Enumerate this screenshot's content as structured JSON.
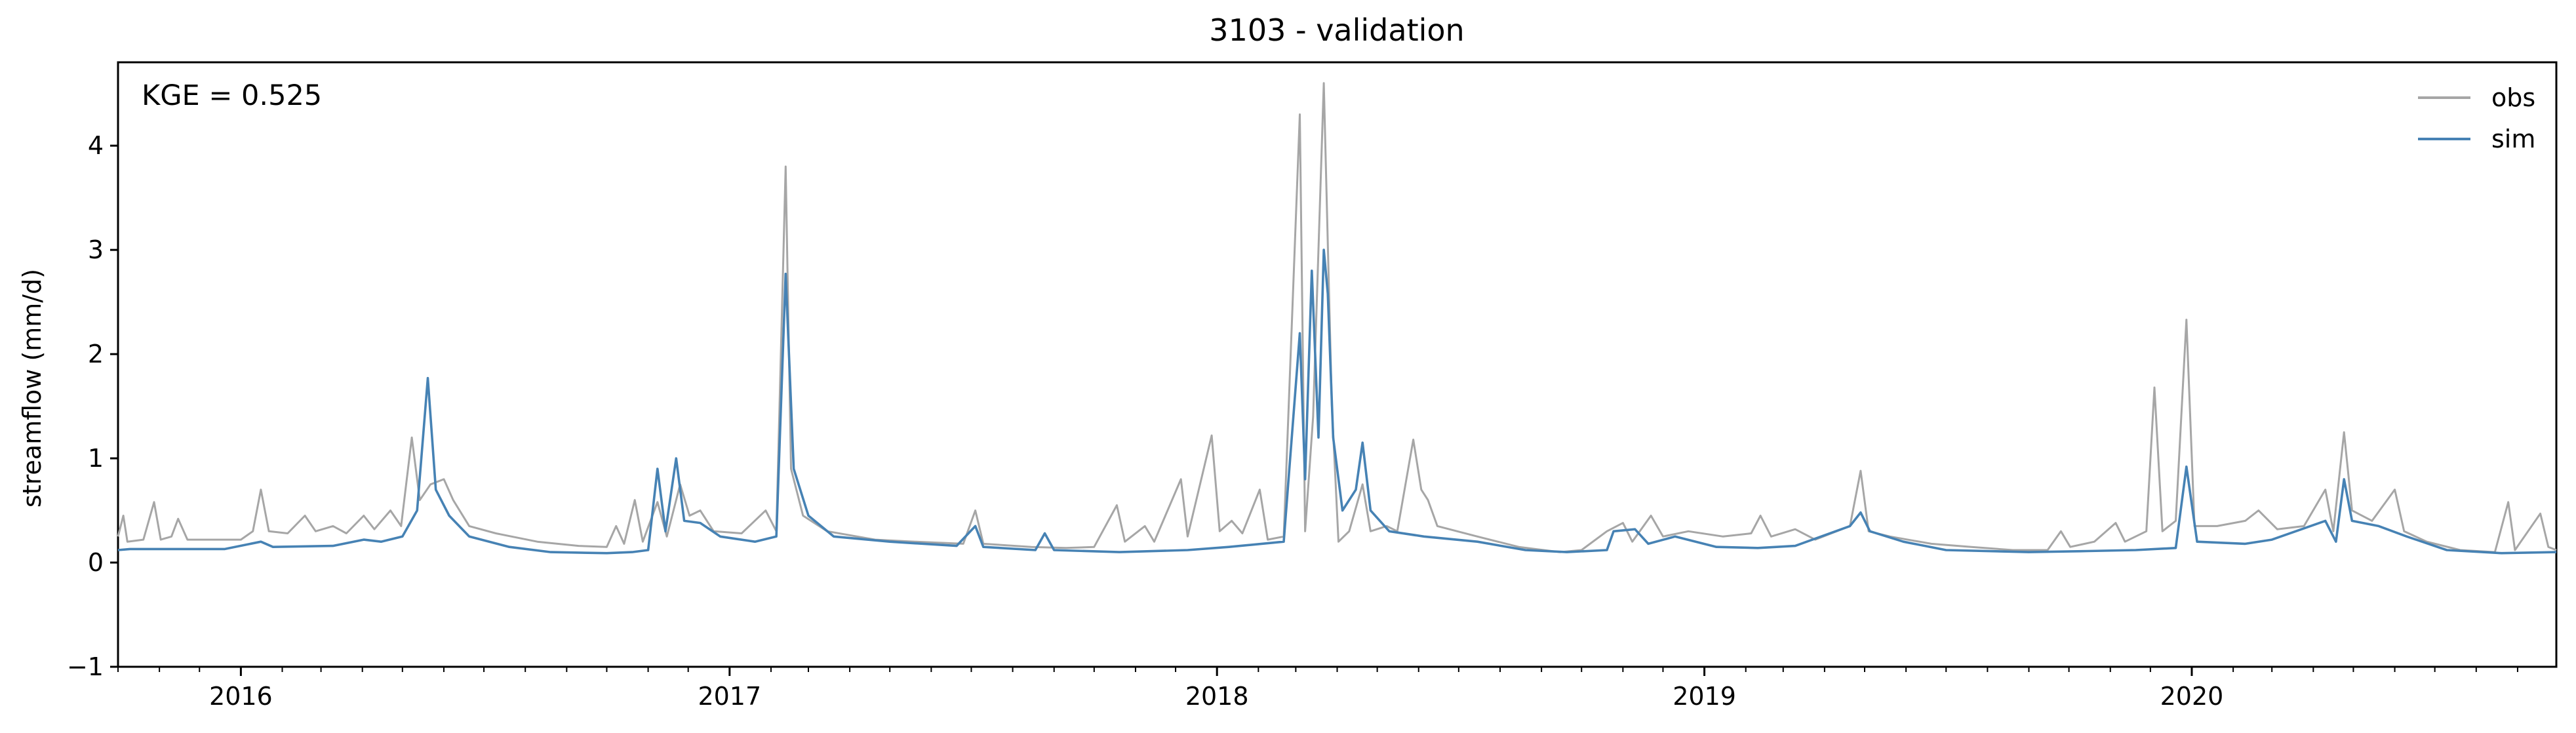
{
  "chart_data": {
    "type": "line",
    "title": "3103 - validation",
    "xlabel": "",
    "ylabel": "streamflow (mm/d)",
    "annotation": "KGE = 0.525",
    "xlim": [
      "2015-10-01",
      "2020-09-30"
    ],
    "ylim": [
      -1,
      4.8
    ],
    "x_ticks": [
      "2016",
      "2017",
      "2018",
      "2019",
      "2020"
    ],
    "x_tick_dates": [
      "2016-01-01",
      "2017-01-01",
      "2018-01-01",
      "2019-01-01",
      "2020-01-01"
    ],
    "y_ticks": [
      "−1",
      "0",
      "1",
      "2",
      "3",
      "4"
    ],
    "y_tick_values": [
      -1,
      0,
      1,
      2,
      3,
      4
    ],
    "grid": false,
    "legend_position": "top-right",
    "series": [
      {
        "name": "obs",
        "color": "#a6a6a6",
        "points": [
          [
            "2015-10-01",
            0.25
          ],
          [
            "2015-10-05",
            0.45
          ],
          [
            "2015-10-08",
            0.2
          ],
          [
            "2015-10-20",
            0.22
          ],
          [
            "2015-10-28",
            0.58
          ],
          [
            "2015-11-02",
            0.22
          ],
          [
            "2015-11-10",
            0.25
          ],
          [
            "2015-11-15",
            0.42
          ],
          [
            "2015-11-22",
            0.22
          ],
          [
            "2015-12-10",
            0.22
          ],
          [
            "2016-01-01",
            0.22
          ],
          [
            "2016-01-10",
            0.3
          ],
          [
            "2016-01-16",
            0.7
          ],
          [
            "2016-01-22",
            0.3
          ],
          [
            "2016-02-05",
            0.28
          ],
          [
            "2016-02-18",
            0.45
          ],
          [
            "2016-02-26",
            0.3
          ],
          [
            "2016-03-10",
            0.35
          ],
          [
            "2016-03-20",
            0.28
          ],
          [
            "2016-04-02",
            0.45
          ],
          [
            "2016-04-10",
            0.32
          ],
          [
            "2016-04-22",
            0.5
          ],
          [
            "2016-04-30",
            0.35
          ],
          [
            "2016-05-08",
            1.2
          ],
          [
            "2016-05-14",
            0.6
          ],
          [
            "2016-05-22",
            0.75
          ],
          [
            "2016-06-01",
            0.8
          ],
          [
            "2016-06-08",
            0.6
          ],
          [
            "2016-06-20",
            0.35
          ],
          [
            "2016-07-10",
            0.28
          ],
          [
            "2016-08-10",
            0.2
          ],
          [
            "2016-09-10",
            0.16
          ],
          [
            "2016-10-01",
            0.15
          ],
          [
            "2016-10-08",
            0.35
          ],
          [
            "2016-10-14",
            0.18
          ],
          [
            "2016-10-22",
            0.6
          ],
          [
            "2016-10-28",
            0.2
          ],
          [
            "2016-11-08",
            0.58
          ],
          [
            "2016-11-15",
            0.25
          ],
          [
            "2016-11-25",
            0.75
          ],
          [
            "2016-12-02",
            0.45
          ],
          [
            "2016-12-10",
            0.5
          ],
          [
            "2016-12-20",
            0.3
          ],
          [
            "2017-01-10",
            0.28
          ],
          [
            "2017-01-28",
            0.5
          ],
          [
            "2017-02-05",
            0.3
          ],
          [
            "2017-02-12",
            3.8
          ],
          [
            "2017-02-16",
            0.9
          ],
          [
            "2017-02-25",
            0.45
          ],
          [
            "2017-03-15",
            0.3
          ],
          [
            "2017-04-20",
            0.22
          ],
          [
            "2017-05-20",
            0.2
          ],
          [
            "2017-06-25",
            0.18
          ],
          [
            "2017-07-04",
            0.5
          ],
          [
            "2017-07-10",
            0.18
          ],
          [
            "2017-08-15",
            0.15
          ],
          [
            "2017-09-10",
            0.14
          ],
          [
            "2017-10-01",
            0.15
          ],
          [
            "2017-10-18",
            0.55
          ],
          [
            "2017-10-24",
            0.2
          ],
          [
            "2017-11-08",
            0.35
          ],
          [
            "2017-11-15",
            0.2
          ],
          [
            "2017-12-05",
            0.8
          ],
          [
            "2017-12-10",
            0.25
          ],
          [
            "2017-12-28",
            1.22
          ],
          [
            "2018-01-03",
            0.3
          ],
          [
            "2018-01-12",
            0.4
          ],
          [
            "2018-01-20",
            0.28
          ],
          [
            "2018-02-02",
            0.7
          ],
          [
            "2018-02-08",
            0.22
          ],
          [
            "2018-02-20",
            0.25
          ],
          [
            "2018-03-04",
            4.3
          ],
          [
            "2018-03-08",
            0.3
          ],
          [
            "2018-03-14",
            1.4
          ],
          [
            "2018-03-22",
            4.6
          ],
          [
            "2018-03-28",
            1.5
          ],
          [
            "2018-04-02",
            0.2
          ],
          [
            "2018-04-10",
            0.3
          ],
          [
            "2018-04-20",
            0.75
          ],
          [
            "2018-04-26",
            0.3
          ],
          [
            "2018-05-08",
            0.35
          ],
          [
            "2018-05-16",
            0.3
          ],
          [
            "2018-05-28",
            1.18
          ],
          [
            "2018-06-03",
            0.7
          ],
          [
            "2018-06-08",
            0.6
          ],
          [
            "2018-06-15",
            0.35
          ],
          [
            "2018-07-15",
            0.25
          ],
          [
            "2018-08-15",
            0.15
          ],
          [
            "2018-09-15",
            0.1
          ],
          [
            "2018-10-01",
            0.12
          ],
          [
            "2018-10-20",
            0.3
          ],
          [
            "2018-11-01",
            0.38
          ],
          [
            "2018-11-08",
            0.2
          ],
          [
            "2018-11-22",
            0.45
          ],
          [
            "2018-12-01",
            0.25
          ],
          [
            "2018-12-20",
            0.3
          ],
          [
            "2019-01-15",
            0.25
          ],
          [
            "2019-02-05",
            0.28
          ],
          [
            "2019-02-12",
            0.45
          ],
          [
            "2019-02-20",
            0.25
          ],
          [
            "2019-03-10",
            0.32
          ],
          [
            "2019-03-25",
            0.22
          ],
          [
            "2019-04-10",
            0.3
          ],
          [
            "2019-04-20",
            0.35
          ],
          [
            "2019-04-28",
            0.88
          ],
          [
            "2019-05-04",
            0.3
          ],
          [
            "2019-05-20",
            0.25
          ],
          [
            "2019-06-20",
            0.18
          ],
          [
            "2019-07-20",
            0.15
          ],
          [
            "2019-08-20",
            0.12
          ],
          [
            "2019-09-15",
            0.12
          ],
          [
            "2019-09-25",
            0.3
          ],
          [
            "2019-10-02",
            0.15
          ],
          [
            "2019-10-20",
            0.2
          ],
          [
            "2019-11-05",
            0.38
          ],
          [
            "2019-11-12",
            0.2
          ],
          [
            "2019-11-28",
            0.3
          ],
          [
            "2019-12-04",
            1.68
          ],
          [
            "2019-12-10",
            0.3
          ],
          [
            "2019-12-20",
            0.4
          ],
          [
            "2019-12-28",
            2.33
          ],
          [
            "2020-01-03",
            0.35
          ],
          [
            "2020-01-20",
            0.35
          ],
          [
            "2020-02-10",
            0.4
          ],
          [
            "2020-02-20",
            0.5
          ],
          [
            "2020-03-05",
            0.32
          ],
          [
            "2020-03-25",
            0.35
          ],
          [
            "2020-04-10",
            0.7
          ],
          [
            "2020-04-16",
            0.3
          ],
          [
            "2020-04-24",
            1.25
          ],
          [
            "2020-04-30",
            0.5
          ],
          [
            "2020-05-15",
            0.4
          ],
          [
            "2020-06-01",
            0.7
          ],
          [
            "2020-06-08",
            0.3
          ],
          [
            "2020-06-25",
            0.2
          ],
          [
            "2020-07-20",
            0.12
          ],
          [
            "2020-08-15",
            0.1
          ],
          [
            "2020-08-25",
            0.58
          ],
          [
            "2020-08-30",
            0.12
          ],
          [
            "2020-09-18",
            0.47
          ],
          [
            "2020-09-24",
            0.15
          ],
          [
            "2020-09-30",
            0.12
          ]
        ]
      },
      {
        "name": "sim",
        "color": "#4682b4",
        "points": [
          [
            "2015-10-01",
            0.12
          ],
          [
            "2015-10-10",
            0.13
          ],
          [
            "2015-11-10",
            0.13
          ],
          [
            "2015-12-20",
            0.13
          ],
          [
            "2016-01-16",
            0.2
          ],
          [
            "2016-01-25",
            0.15
          ],
          [
            "2016-03-10",
            0.16
          ],
          [
            "2016-04-02",
            0.22
          ],
          [
            "2016-04-15",
            0.2
          ],
          [
            "2016-05-01",
            0.25
          ],
          [
            "2016-05-12",
            0.5
          ],
          [
            "2016-05-20",
            1.77
          ],
          [
            "2016-05-26",
            0.7
          ],
          [
            "2016-06-05",
            0.45
          ],
          [
            "2016-06-20",
            0.25
          ],
          [
            "2016-07-20",
            0.15
          ],
          [
            "2016-08-20",
            0.1
          ],
          [
            "2016-10-01",
            0.09
          ],
          [
            "2016-10-20",
            0.1
          ],
          [
            "2016-11-01",
            0.12
          ],
          [
            "2016-11-08",
            0.9
          ],
          [
            "2016-11-14",
            0.3
          ],
          [
            "2016-11-22",
            1.0
          ],
          [
            "2016-11-28",
            0.4
          ],
          [
            "2016-12-10",
            0.38
          ],
          [
            "2016-12-25",
            0.25
          ],
          [
            "2017-01-20",
            0.2
          ],
          [
            "2017-02-05",
            0.25
          ],
          [
            "2017-02-12",
            2.77
          ],
          [
            "2017-02-18",
            0.9
          ],
          [
            "2017-03-01",
            0.45
          ],
          [
            "2017-03-20",
            0.25
          ],
          [
            "2017-05-01",
            0.2
          ],
          [
            "2017-06-20",
            0.16
          ],
          [
            "2017-07-04",
            0.35
          ],
          [
            "2017-07-10",
            0.15
          ],
          [
            "2017-08-18",
            0.12
          ],
          [
            "2017-08-25",
            0.28
          ],
          [
            "2017-09-01",
            0.12
          ],
          [
            "2017-10-20",
            0.1
          ],
          [
            "2017-12-10",
            0.12
          ],
          [
            "2018-01-10",
            0.15
          ],
          [
            "2018-02-20",
            0.2
          ],
          [
            "2018-03-04",
            2.2
          ],
          [
            "2018-03-08",
            0.8
          ],
          [
            "2018-03-13",
            2.8
          ],
          [
            "2018-03-18",
            1.2
          ],
          [
            "2018-03-22",
            3.0
          ],
          [
            "2018-03-25",
            2.58
          ],
          [
            "2018-03-29",
            1.2
          ],
          [
            "2018-04-05",
            0.5
          ],
          [
            "2018-04-15",
            0.7
          ],
          [
            "2018-04-20",
            1.15
          ],
          [
            "2018-04-26",
            0.5
          ],
          [
            "2018-05-10",
            0.3
          ],
          [
            "2018-06-05",
            0.25
          ],
          [
            "2018-07-15",
            0.2
          ],
          [
            "2018-08-20",
            0.12
          ],
          [
            "2018-09-20",
            0.1
          ],
          [
            "2018-10-20",
            0.12
          ],
          [
            "2018-10-25",
            0.3
          ],
          [
            "2018-11-10",
            0.32
          ],
          [
            "2018-11-20",
            0.18
          ],
          [
            "2018-12-10",
            0.25
          ],
          [
            "2019-01-10",
            0.15
          ],
          [
            "2019-02-10",
            0.14
          ],
          [
            "2019-03-10",
            0.16
          ],
          [
            "2019-04-20",
            0.35
          ],
          [
            "2019-04-28",
            0.48
          ],
          [
            "2019-05-05",
            0.3
          ],
          [
            "2019-05-30",
            0.2
          ],
          [
            "2019-07-01",
            0.12
          ],
          [
            "2019-09-01",
            0.1
          ],
          [
            "2019-10-15",
            0.11
          ],
          [
            "2019-11-20",
            0.12
          ],
          [
            "2019-12-20",
            0.14
          ],
          [
            "2019-12-28",
            0.92
          ],
          [
            "2020-01-05",
            0.2
          ],
          [
            "2020-02-10",
            0.18
          ],
          [
            "2020-03-01",
            0.22
          ],
          [
            "2020-04-10",
            0.4
          ],
          [
            "2020-04-18",
            0.2
          ],
          [
            "2020-04-24",
            0.8
          ],
          [
            "2020-04-30",
            0.4
          ],
          [
            "2020-05-20",
            0.35
          ],
          [
            "2020-06-10",
            0.25
          ],
          [
            "2020-07-10",
            0.12
          ],
          [
            "2020-08-20",
            0.09
          ],
          [
            "2020-09-30",
            0.1
          ]
        ]
      }
    ]
  }
}
